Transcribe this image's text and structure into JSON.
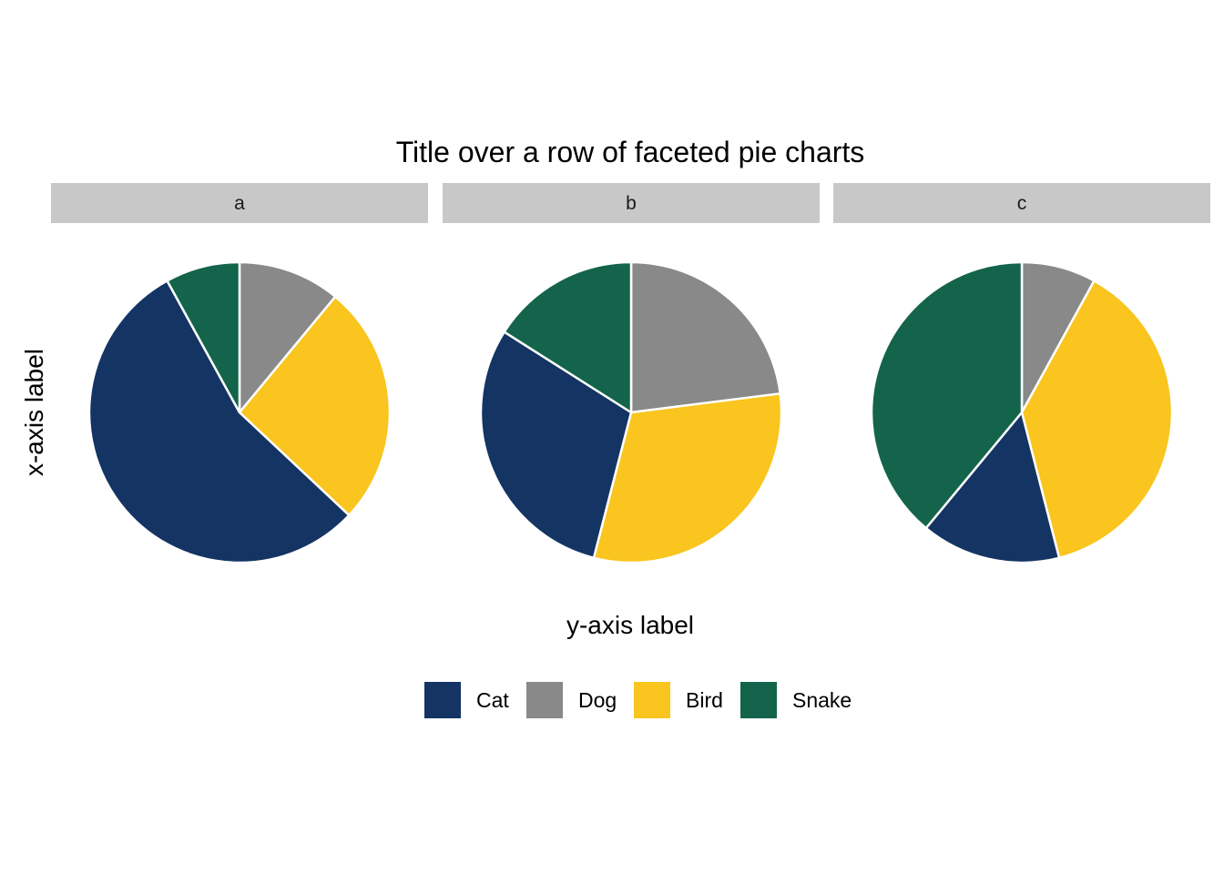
{
  "chart_data": {
    "type": "pie",
    "title": "Title over a row of faceted pie charts",
    "xlabel": "y-axis label",
    "ylabel": "x-axis label",
    "categories": [
      "Cat",
      "Dog",
      "Bird",
      "Snake"
    ],
    "colors": {
      "Cat": "#143463",
      "Dog": "#898989",
      "Bird": "#F9C51E",
      "Snake": "#13644A"
    },
    "slice_border_color": "#ffffff",
    "strip_color": "#C8C8C8",
    "legend_position": "bottom",
    "facets": [
      {
        "label": "a",
        "values": {
          "Dog": 11,
          "Bird": 26,
          "Cat": 55,
          "Snake": 8
        }
      },
      {
        "label": "b",
        "values": {
          "Dog": 23,
          "Bird": 31,
          "Cat": 30,
          "Snake": 16
        }
      },
      {
        "label": "c",
        "values": {
          "Dog": 8,
          "Bird": 38,
          "Cat": 15,
          "Snake": 39
        }
      }
    ],
    "slice_order": [
      "Dog",
      "Bird",
      "Cat",
      "Snake"
    ]
  }
}
